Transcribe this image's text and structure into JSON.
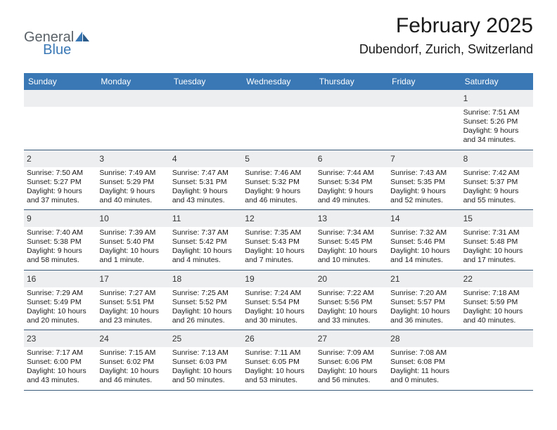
{
  "logo": {
    "text1": "General",
    "text2": "Blue"
  },
  "header": {
    "month_title": "February 2025",
    "location": "Dubendorf, Zurich, Switzerland"
  },
  "colors": {
    "header_bg": "#3a78b5",
    "header_text": "#ffffff",
    "num_bg": "#eceeef",
    "rule": "#3a5a7a",
    "logo_gray": "#5a6268",
    "logo_blue": "#3a78b5"
  },
  "day_names": [
    "Sunday",
    "Monday",
    "Tuesday",
    "Wednesday",
    "Thursday",
    "Friday",
    "Saturday"
  ],
  "weeks": [
    [
      {
        "n": "",
        "sr": "",
        "ss": "",
        "dl": ""
      },
      {
        "n": "",
        "sr": "",
        "ss": "",
        "dl": ""
      },
      {
        "n": "",
        "sr": "",
        "ss": "",
        "dl": ""
      },
      {
        "n": "",
        "sr": "",
        "ss": "",
        "dl": ""
      },
      {
        "n": "",
        "sr": "",
        "ss": "",
        "dl": ""
      },
      {
        "n": "",
        "sr": "",
        "ss": "",
        "dl": ""
      },
      {
        "n": "1",
        "sr": "Sunrise: 7:51 AM",
        "ss": "Sunset: 5:26 PM",
        "dl": "Daylight: 9 hours and 34 minutes."
      }
    ],
    [
      {
        "n": "2",
        "sr": "Sunrise: 7:50 AM",
        "ss": "Sunset: 5:27 PM",
        "dl": "Daylight: 9 hours and 37 minutes."
      },
      {
        "n": "3",
        "sr": "Sunrise: 7:49 AM",
        "ss": "Sunset: 5:29 PM",
        "dl": "Daylight: 9 hours and 40 minutes."
      },
      {
        "n": "4",
        "sr": "Sunrise: 7:47 AM",
        "ss": "Sunset: 5:31 PM",
        "dl": "Daylight: 9 hours and 43 minutes."
      },
      {
        "n": "5",
        "sr": "Sunrise: 7:46 AM",
        "ss": "Sunset: 5:32 PM",
        "dl": "Daylight: 9 hours and 46 minutes."
      },
      {
        "n": "6",
        "sr": "Sunrise: 7:44 AM",
        "ss": "Sunset: 5:34 PM",
        "dl": "Daylight: 9 hours and 49 minutes."
      },
      {
        "n": "7",
        "sr": "Sunrise: 7:43 AM",
        "ss": "Sunset: 5:35 PM",
        "dl": "Daylight: 9 hours and 52 minutes."
      },
      {
        "n": "8",
        "sr": "Sunrise: 7:42 AM",
        "ss": "Sunset: 5:37 PM",
        "dl": "Daylight: 9 hours and 55 minutes."
      }
    ],
    [
      {
        "n": "9",
        "sr": "Sunrise: 7:40 AM",
        "ss": "Sunset: 5:38 PM",
        "dl": "Daylight: 9 hours and 58 minutes."
      },
      {
        "n": "10",
        "sr": "Sunrise: 7:39 AM",
        "ss": "Sunset: 5:40 PM",
        "dl": "Daylight: 10 hours and 1 minute."
      },
      {
        "n": "11",
        "sr": "Sunrise: 7:37 AM",
        "ss": "Sunset: 5:42 PM",
        "dl": "Daylight: 10 hours and 4 minutes."
      },
      {
        "n": "12",
        "sr": "Sunrise: 7:35 AM",
        "ss": "Sunset: 5:43 PM",
        "dl": "Daylight: 10 hours and 7 minutes."
      },
      {
        "n": "13",
        "sr": "Sunrise: 7:34 AM",
        "ss": "Sunset: 5:45 PM",
        "dl": "Daylight: 10 hours and 10 minutes."
      },
      {
        "n": "14",
        "sr": "Sunrise: 7:32 AM",
        "ss": "Sunset: 5:46 PM",
        "dl": "Daylight: 10 hours and 14 minutes."
      },
      {
        "n": "15",
        "sr": "Sunrise: 7:31 AM",
        "ss": "Sunset: 5:48 PM",
        "dl": "Daylight: 10 hours and 17 minutes."
      }
    ],
    [
      {
        "n": "16",
        "sr": "Sunrise: 7:29 AM",
        "ss": "Sunset: 5:49 PM",
        "dl": "Daylight: 10 hours and 20 minutes."
      },
      {
        "n": "17",
        "sr": "Sunrise: 7:27 AM",
        "ss": "Sunset: 5:51 PM",
        "dl": "Daylight: 10 hours and 23 minutes."
      },
      {
        "n": "18",
        "sr": "Sunrise: 7:25 AM",
        "ss": "Sunset: 5:52 PM",
        "dl": "Daylight: 10 hours and 26 minutes."
      },
      {
        "n": "19",
        "sr": "Sunrise: 7:24 AM",
        "ss": "Sunset: 5:54 PM",
        "dl": "Daylight: 10 hours and 30 minutes."
      },
      {
        "n": "20",
        "sr": "Sunrise: 7:22 AM",
        "ss": "Sunset: 5:56 PM",
        "dl": "Daylight: 10 hours and 33 minutes."
      },
      {
        "n": "21",
        "sr": "Sunrise: 7:20 AM",
        "ss": "Sunset: 5:57 PM",
        "dl": "Daylight: 10 hours and 36 minutes."
      },
      {
        "n": "22",
        "sr": "Sunrise: 7:18 AM",
        "ss": "Sunset: 5:59 PM",
        "dl": "Daylight: 10 hours and 40 minutes."
      }
    ],
    [
      {
        "n": "23",
        "sr": "Sunrise: 7:17 AM",
        "ss": "Sunset: 6:00 PM",
        "dl": "Daylight: 10 hours and 43 minutes."
      },
      {
        "n": "24",
        "sr": "Sunrise: 7:15 AM",
        "ss": "Sunset: 6:02 PM",
        "dl": "Daylight: 10 hours and 46 minutes."
      },
      {
        "n": "25",
        "sr": "Sunrise: 7:13 AM",
        "ss": "Sunset: 6:03 PM",
        "dl": "Daylight: 10 hours and 50 minutes."
      },
      {
        "n": "26",
        "sr": "Sunrise: 7:11 AM",
        "ss": "Sunset: 6:05 PM",
        "dl": "Daylight: 10 hours and 53 minutes."
      },
      {
        "n": "27",
        "sr": "Sunrise: 7:09 AM",
        "ss": "Sunset: 6:06 PM",
        "dl": "Daylight: 10 hours and 56 minutes."
      },
      {
        "n": "28",
        "sr": "Sunrise: 7:08 AM",
        "ss": "Sunset: 6:08 PM",
        "dl": "Daylight: 11 hours and 0 minutes."
      },
      {
        "n": "",
        "sr": "",
        "ss": "",
        "dl": ""
      }
    ]
  ]
}
